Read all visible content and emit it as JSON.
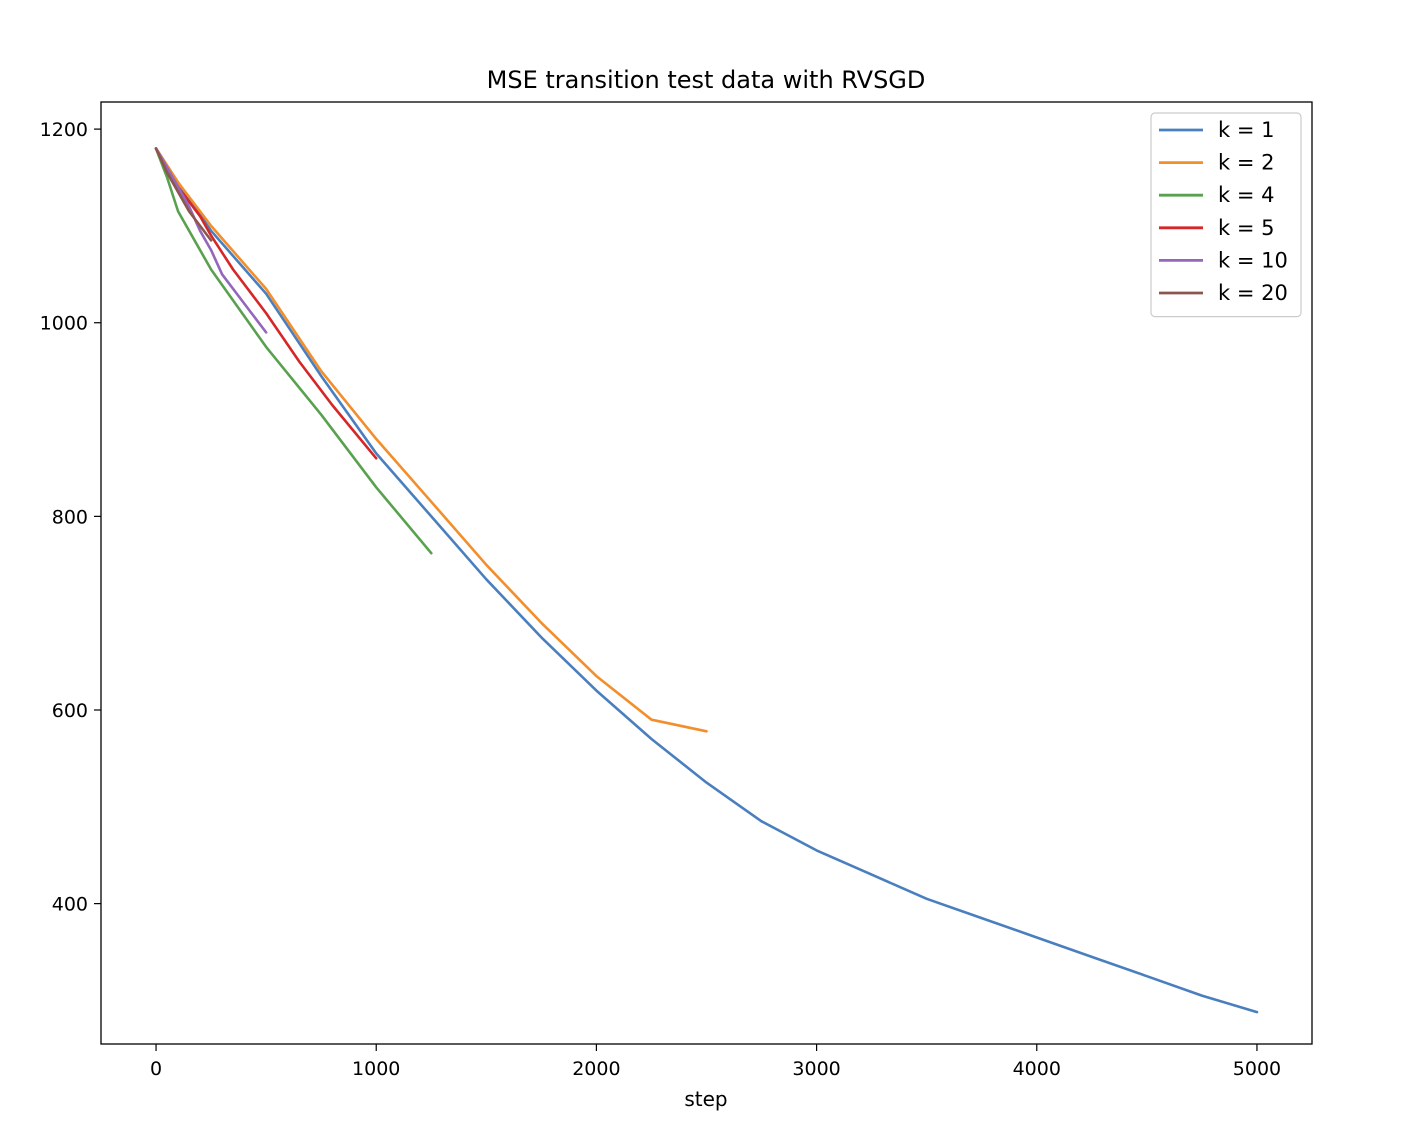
{
  "chart_data": {
    "type": "line",
    "title": "MSE transition test data with RVSGD",
    "xlabel": "step",
    "ylabel": "",
    "xlim": [
      -250,
      5250
    ],
    "ylim": [
      255,
      1228
    ],
    "xticks": [
      0,
      1000,
      2000,
      3000,
      4000,
      5000
    ],
    "yticks": [
      400,
      600,
      800,
      1000,
      1200
    ],
    "grid": false,
    "legend_position": "top-right",
    "series": [
      {
        "name": "k = 1",
        "color": "#4a7fbf",
        "x": [
          0,
          100,
          250,
          500,
          750,
          1000,
          1250,
          1500,
          1750,
          2000,
          2250,
          2500,
          2750,
          3000,
          3250,
          3500,
          3750,
          4000,
          4250,
          4500,
          4750,
          5000
        ],
        "y": [
          1180,
          1145,
          1095,
          1030,
          945,
          865,
          800,
          735,
          675,
          620,
          570,
          525,
          485,
          455,
          430,
          405,
          385,
          365,
          345,
          325,
          305,
          288
        ]
      },
      {
        "name": "k = 2",
        "color": "#f28e2b",
        "x": [
          0,
          100,
          250,
          500,
          750,
          1000,
          1250,
          1500,
          1750,
          2000,
          2250,
          2500
        ],
        "y": [
          1180,
          1145,
          1100,
          1035,
          950,
          880,
          815,
          750,
          690,
          635,
          590,
          578
        ]
      },
      {
        "name": "k = 4",
        "color": "#59a14f",
        "x": [
          0,
          50,
          100,
          250,
          500,
          750,
          1000,
          1250
        ],
        "y": [
          1180,
          1150,
          1115,
          1055,
          975,
          905,
          830,
          762
        ]
      },
      {
        "name": "k = 5",
        "color": "#d62728",
        "x": [
          0,
          50,
          100,
          150,
          200,
          250,
          350,
          500,
          650,
          800,
          1000
        ],
        "y": [
          1180,
          1160,
          1140,
          1125,
          1110,
          1090,
          1055,
          1010,
          960,
          915,
          860
        ]
      },
      {
        "name": "k = 10",
        "color": "#9467bd",
        "x": [
          0,
          50,
          100,
          150,
          200,
          250,
          300,
          400,
          500
        ],
        "y": [
          1180,
          1160,
          1140,
          1120,
          1095,
          1075,
          1050,
          1020,
          990
        ]
      },
      {
        "name": "k = 20",
        "color": "#8c564b",
        "x": [
          0,
          50,
          100,
          150,
          200,
          250
        ],
        "y": [
          1180,
          1155,
          1135,
          1115,
          1100,
          1085
        ]
      }
    ]
  }
}
